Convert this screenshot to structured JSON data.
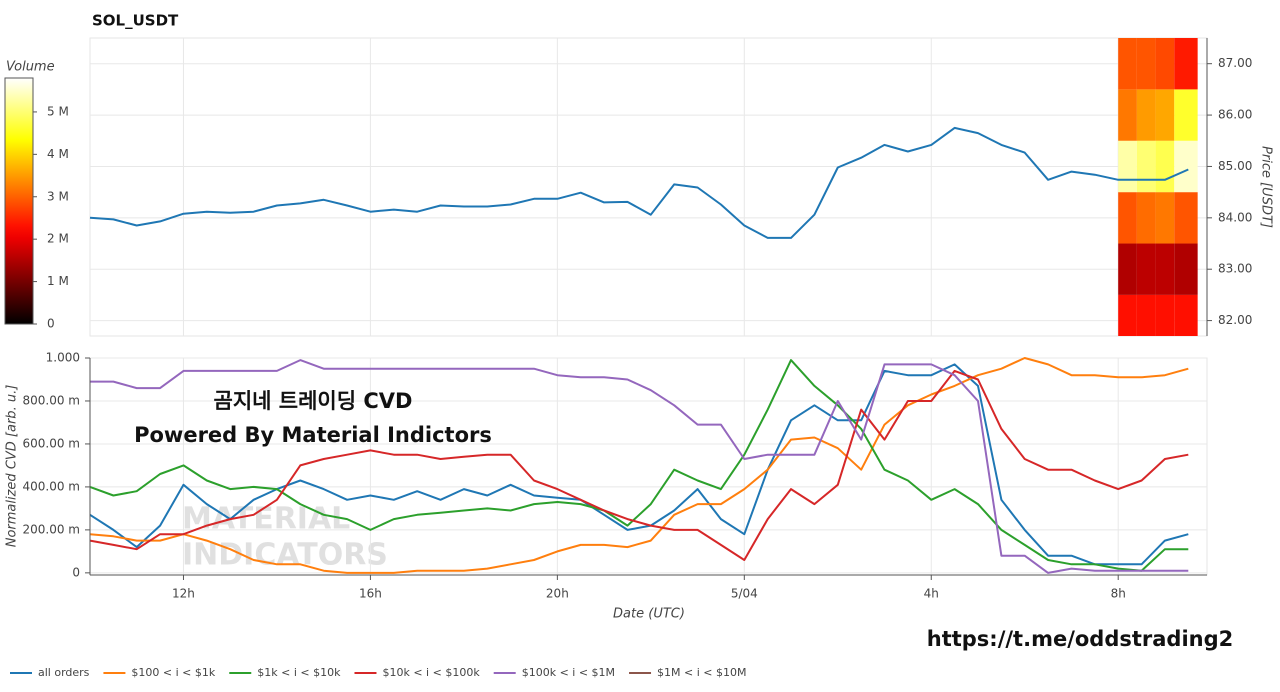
{
  "chart_data": [
    {
      "type": "line",
      "title": "SOL_USDT",
      "ylabel": "Price [USDT]",
      "y_axis_side": "right",
      "grid": true,
      "xlim": [
        10,
        33.9
      ],
      "ylim": [
        81.7,
        87.5
      ],
      "yticks": [
        {
          "value": 82,
          "label": "82.00"
        },
        {
          "value": 83,
          "label": "83.00"
        },
        {
          "value": 84,
          "label": "84.00"
        },
        {
          "value": 85,
          "label": "85.00"
        },
        {
          "value": 86,
          "label": "86.00"
        },
        {
          "value": 87,
          "label": "87.00"
        }
      ],
      "x": [
        10,
        10.5,
        11,
        11.5,
        12,
        12.5,
        13,
        13.5,
        14,
        14.5,
        15,
        15.5,
        16,
        16.5,
        17,
        17.5,
        18,
        18.5,
        19,
        19.5,
        20,
        20.5,
        21,
        21.5,
        22,
        22.5,
        23,
        23.5,
        24,
        24.5,
        25,
        25.5,
        26,
        26.5,
        27,
        27.5,
        28,
        28.5,
        29,
        29.5,
        30,
        30.5,
        31,
        31.5,
        32,
        32.5,
        33,
        33.5
      ],
      "series": [
        {
          "color": "#1f77b4",
          "values": [
            84.0,
            83.97,
            83.85,
            83.93,
            84.08,
            84.12,
            84.1,
            84.12,
            84.24,
            84.28,
            84.35,
            84.24,
            84.12,
            84.16,
            84.12,
            84.24,
            84.22,
            84.22,
            84.26,
            84.37,
            84.37,
            84.49,
            84.3,
            84.31,
            84.06,
            84.65,
            84.59,
            84.26,
            83.85,
            83.61,
            83.61,
            84.06,
            84.98,
            85.17,
            85.42,
            85.29,
            85.42,
            85.75,
            85.65,
            85.42,
            85.27,
            84.74,
            84.9,
            84.84,
            84.74,
            84.74,
            84.74,
            84.94
          ]
        }
      ],
      "heatmap": {
        "x_edges": [
          32.0,
          32.4,
          32.8,
          33.2,
          33.7
        ],
        "y_edges": [
          81.5,
          82.5,
          83.5,
          84.5,
          85.5,
          86.5,
          87.5
        ],
        "values": [
          [
            2300000,
            2300000,
            2300000,
            2300000
          ],
          [
            1500000,
            1600000,
            1600000,
            1500000
          ],
          [
            2900000,
            3100000,
            3200000,
            2900000
          ],
          [
            5300000,
            5000000,
            4800000,
            5500000
          ],
          [
            3200000,
            3500000,
            3600000,
            4600000
          ],
          [
            2900000,
            2900000,
            2800000,
            2400000
          ]
        ],
        "colormap": "hot",
        "colorbar": {
          "title": "Volume",
          "clim": [
            0,
            5800000
          ],
          "ticks": [
            0,
            {
              "value": 1000000,
              "label": "1 M"
            },
            {
              "value": 2000000,
              "label": "2 M"
            },
            {
              "value": 3000000,
              "label": "3 M"
            },
            {
              "value": 4000000,
              "label": "4 M"
            },
            {
              "value": 5000000,
              "label": "5 M"
            }
          ]
        }
      }
    },
    {
      "type": "line",
      "xlabel": "Date (UTC)",
      "ylabel": "Normalized CVD [arb. u.]",
      "grid": true,
      "legend": "bottom-left",
      "xlim": [
        10,
        33.9
      ],
      "ylim": [
        -0.01,
        1.0
      ],
      "xticks": [
        {
          "value": 12,
          "label": "12h"
        },
        {
          "value": 16,
          "label": "16h"
        },
        {
          "value": 20,
          "label": "20h"
        },
        {
          "value": 24,
          "label": "5/04"
        },
        {
          "value": 28,
          "label": "4h"
        },
        {
          "value": 32,
          "label": "8h"
        }
      ],
      "yticks": [
        0,
        {
          "value": 0.2,
          "label": "200.00 m"
        },
        {
          "value": 0.4,
          "label": "400.00 m"
        },
        {
          "value": 0.6,
          "label": "600.00 m"
        },
        {
          "value": 0.8,
          "label": "800.00 m"
        },
        {
          "value": 1.0,
          "label": "1.000"
        }
      ],
      "annotations": [
        "곰지네 트레이딩 CVD",
        "Powered By Material Indictors",
        "https://t.me/oddstrading2"
      ],
      "watermark": [
        "MATERIAL",
        "INDICATORS"
      ],
      "x": [
        10,
        10.5,
        11,
        11.5,
        12,
        12.5,
        13,
        13.5,
        14,
        14.5,
        15,
        15.5,
        16,
        16.5,
        17,
        17.5,
        18,
        18.5,
        19,
        19.5,
        20,
        20.5,
        21,
        21.5,
        22,
        22.5,
        23,
        23.5,
        24,
        24.5,
        25,
        25.5,
        26,
        26.5,
        27,
        27.5,
        28,
        28.5,
        29,
        29.5,
        30,
        30.5,
        31,
        31.5,
        32,
        32.5,
        33,
        33.5
      ],
      "series": [
        {
          "name": "all orders",
          "color": "#1f77b4",
          "values": [
            0.27,
            0.2,
            0.12,
            0.22,
            0.41,
            0.32,
            0.25,
            0.34,
            0.39,
            0.43,
            0.39,
            0.34,
            0.36,
            0.34,
            0.38,
            0.34,
            0.39,
            0.36,
            0.41,
            0.36,
            0.35,
            0.34,
            0.27,
            0.2,
            0.22,
            0.29,
            0.39,
            0.25,
            0.18,
            0.48,
            0.71,
            0.78,
            0.71,
            0.71,
            0.94,
            0.92,
            0.92,
            0.97,
            0.87,
            0.34,
            0.2,
            0.08,
            0.08,
            0.04,
            0.04,
            0.04,
            0.15,
            0.18
          ]
        },
        {
          "name": "$100 < i < $1k",
          "color": "#ff7f0e",
          "values": [
            0.18,
            0.17,
            0.15,
            0.15,
            0.18,
            0.15,
            0.11,
            0.06,
            0.04,
            0.04,
            0.01,
            0,
            0,
            0,
            0.01,
            0.01,
            0.01,
            0.02,
            0.04,
            0.06,
            0.1,
            0.13,
            0.13,
            0.12,
            0.15,
            0.27,
            0.32,
            0.32,
            0.39,
            0.48,
            0.62,
            0.63,
            0.58,
            0.48,
            0.69,
            0.78,
            0.83,
            0.87,
            0.92,
            0.95,
            1.0,
            0.97,
            0.92,
            0.92,
            0.91,
            0.91,
            0.92,
            0.95
          ]
        },
        {
          "name": "$1k < i < $10k",
          "color": "#2ca02c",
          "values": [
            0.4,
            0.36,
            0.38,
            0.46,
            0.5,
            0.43,
            0.39,
            0.4,
            0.39,
            0.32,
            0.27,
            0.25,
            0.2,
            0.25,
            0.27,
            0.28,
            0.29,
            0.3,
            0.29,
            0.32,
            0.33,
            0.32,
            0.29,
            0.22,
            0.32,
            0.48,
            0.43,
            0.39,
            0.55,
            0.76,
            0.99,
            0.87,
            0.78,
            0.67,
            0.48,
            0.43,
            0.34,
            0.39,
            0.32,
            0.2,
            0.13,
            0.06,
            0.04,
            0.04,
            0.02,
            0.01,
            0.11,
            0.11
          ]
        },
        {
          "name": "$10k < i < $100k",
          "color": "#d62728",
          "values": [
            0.15,
            0.13,
            0.11,
            0.18,
            0.18,
            0.22,
            0.25,
            0.27,
            0.34,
            0.5,
            0.53,
            0.55,
            0.57,
            0.55,
            0.55,
            0.53,
            0.54,
            0.55,
            0.55,
            0.43,
            0.39,
            0.34,
            0.29,
            0.25,
            0.22,
            0.2,
            0.2,
            0.13,
            0.06,
            0.25,
            0.39,
            0.32,
            0.41,
            0.76,
            0.62,
            0.8,
            0.8,
            0.94,
            0.9,
            0.67,
            0.53,
            0.48,
            0.48,
            0.43,
            0.39,
            0.43,
            0.53,
            0.55
          ]
        },
        {
          "name": "$100k < i < $1M",
          "color": "#9467bd",
          "values": [
            0.89,
            0.89,
            0.86,
            0.86,
            0.94,
            0.94,
            0.94,
            0.94,
            0.94,
            0.99,
            0.95,
            0.95,
            0.95,
            0.95,
            0.95,
            0.95,
            0.95,
            0.95,
            0.95,
            0.95,
            0.92,
            0.91,
            0.91,
            0.9,
            0.85,
            0.78,
            0.69,
            0.69,
            0.53,
            0.55,
            0.55,
            0.55,
            0.8,
            0.62,
            0.97,
            0.97,
            0.97,
            0.92,
            0.8,
            0.08,
            0.08,
            0,
            0.02,
            0.01,
            0.01,
            0.01,
            0.01,
            0.01
          ]
        },
        {
          "name": "$1M < i < $10M",
          "color": "#8c564b",
          "values": [
            null,
            null,
            null,
            null,
            null,
            null,
            null,
            null,
            null,
            null,
            null,
            null,
            null,
            null,
            null,
            null,
            null,
            null,
            null,
            null,
            null,
            null,
            null,
            null,
            null,
            null,
            null,
            null,
            null,
            null,
            null,
            null,
            null,
            null,
            null,
            null,
            null,
            null,
            null,
            null,
            null,
            null,
            null,
            null,
            null,
            null,
            null,
            null
          ]
        }
      ]
    }
  ]
}
